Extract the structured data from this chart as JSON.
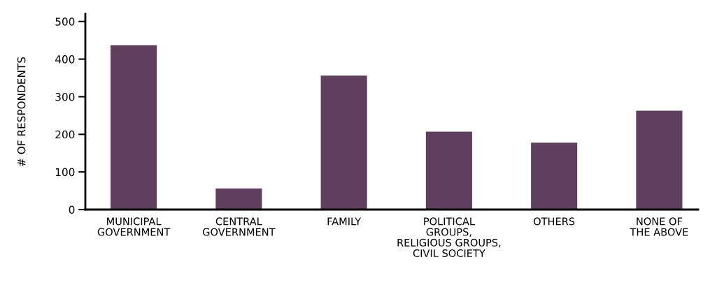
{
  "chart_data": {
    "type": "bar",
    "ylabel": "# OF RESPONDENTS",
    "categories": [
      "MUNICIPAL\nGOVERNMENT",
      "CENTRAL\nGOVERNMENT",
      "FAMILY",
      "POLITICAL\nGROUPS,\nRELIGIOUS GROUPS,\nCIVIL SOCIETY",
      "OTHERS",
      "NONE OF\nTHE ABOVE"
    ],
    "values": [
      437,
      56,
      356,
      207,
      178,
      263
    ],
    "color": "#5f3e5e",
    "ylim": [
      0,
      520
    ],
    "yticks": [
      0,
      100,
      200,
      300,
      400,
      500
    ],
    "grid": false,
    "legend": false
  }
}
